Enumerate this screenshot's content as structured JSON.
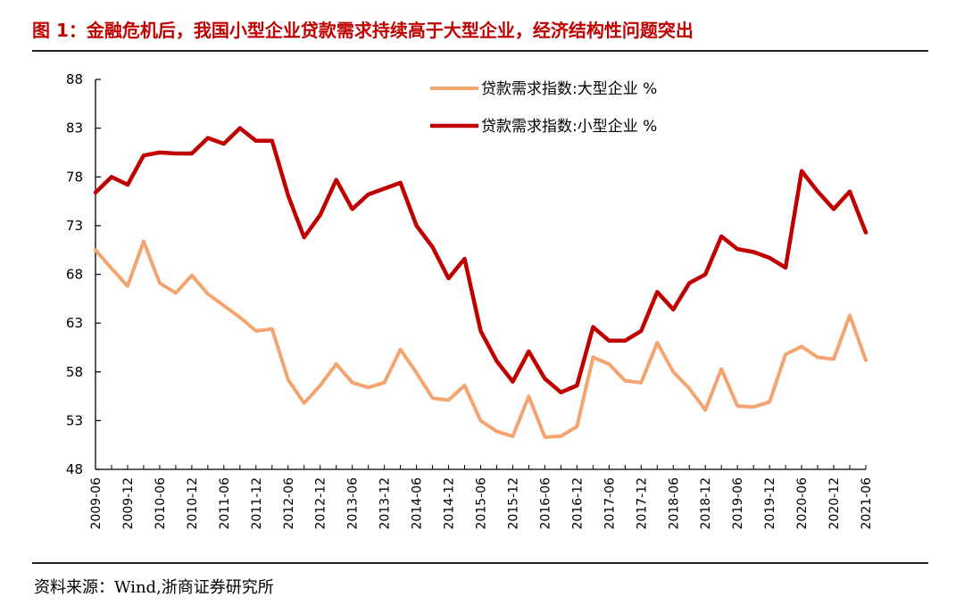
{
  "header": {
    "title": "图 1：金融危机后，我国小型企业贷款需求持续高于大型企业，经济结构性问题突出"
  },
  "footer": {
    "source": "资料来源：Wind,浙商证券研究所"
  },
  "chart_data": {
    "type": "line",
    "title": "",
    "xlabel": "",
    "ylabel": "",
    "ylim": [
      48,
      88
    ],
    "yticks": [
      48,
      53,
      58,
      63,
      68,
      73,
      78,
      83,
      88
    ],
    "xtick_labels": [
      "2009-06",
      "2009-12",
      "2010-06",
      "2010-12",
      "2011-06",
      "2011-12",
      "2012-06",
      "2012-12",
      "2013-06",
      "2013-12",
      "2014-06",
      "2014-12",
      "2015-06",
      "2015-12",
      "2016-06",
      "2016-12",
      "2017-06",
      "2017-12",
      "2018-06",
      "2018-12",
      "2019-06",
      "2019-12",
      "2020-06",
      "2020-12",
      "2021-06"
    ],
    "x": [
      "2009-06",
      "2009-09",
      "2009-12",
      "2010-03",
      "2010-06",
      "2010-09",
      "2010-12",
      "2011-03",
      "2011-06",
      "2011-09",
      "2011-12",
      "2012-03",
      "2012-06",
      "2012-09",
      "2012-12",
      "2013-03",
      "2013-06",
      "2013-09",
      "2013-12",
      "2014-03",
      "2014-06",
      "2014-09",
      "2014-12",
      "2015-03",
      "2015-06",
      "2015-09",
      "2015-12",
      "2016-03",
      "2016-06",
      "2016-09",
      "2016-12",
      "2017-03",
      "2017-06",
      "2017-09",
      "2017-12",
      "2018-03",
      "2018-06",
      "2018-09",
      "2018-12",
      "2019-03",
      "2019-06",
      "2019-09",
      "2019-12",
      "2020-03",
      "2020-06",
      "2020-09",
      "2020-12",
      "2021-03",
      "2021-06"
    ],
    "series": [
      {
        "name": "贷款需求指数:大型企业 %",
        "color": "#f4a46e",
        "values": [
          70.5,
          68.6,
          66.8,
          71.4,
          67.1,
          66.1,
          67.9,
          66.0,
          64.8,
          63.6,
          62.2,
          62.4,
          57.2,
          54.8,
          56.6,
          58.8,
          56.9,
          56.4,
          56.9,
          60.3,
          57.9,
          55.3,
          55.1,
          56.6,
          53.0,
          51.9,
          51.4,
          55.5,
          51.3,
          51.4,
          52.4,
          59.5,
          58.8,
          57.1,
          56.9,
          61.0,
          58.0,
          56.3,
          54.1,
          58.3,
          54.5,
          54.4,
          54.9,
          59.8,
          60.6,
          59.5,
          59.3,
          63.8,
          59.2
        ]
      },
      {
        "name": "贷款需求指数:小型企业 %",
        "color": "#c00000",
        "values": [
          76.4,
          78.0,
          77.2,
          80.2,
          80.5,
          80.4,
          80.4,
          82.0,
          81.4,
          83.0,
          81.7,
          81.7,
          76.1,
          71.8,
          74.1,
          77.7,
          74.7,
          76.2,
          76.8,
          77.4,
          73.0,
          70.8,
          67.6,
          69.6,
          62.2,
          59.1,
          57.0,
          60.1,
          57.3,
          55.9,
          56.6,
          62.6,
          61.2,
          61.2,
          62.2,
          66.2,
          64.4,
          67.1,
          68.0,
          71.9,
          70.6,
          70.3,
          69.7,
          68.7,
          78.6,
          76.5,
          74.7,
          76.5,
          72.3
        ]
      }
    ],
    "legend_position": "top-center",
    "grid": false
  }
}
